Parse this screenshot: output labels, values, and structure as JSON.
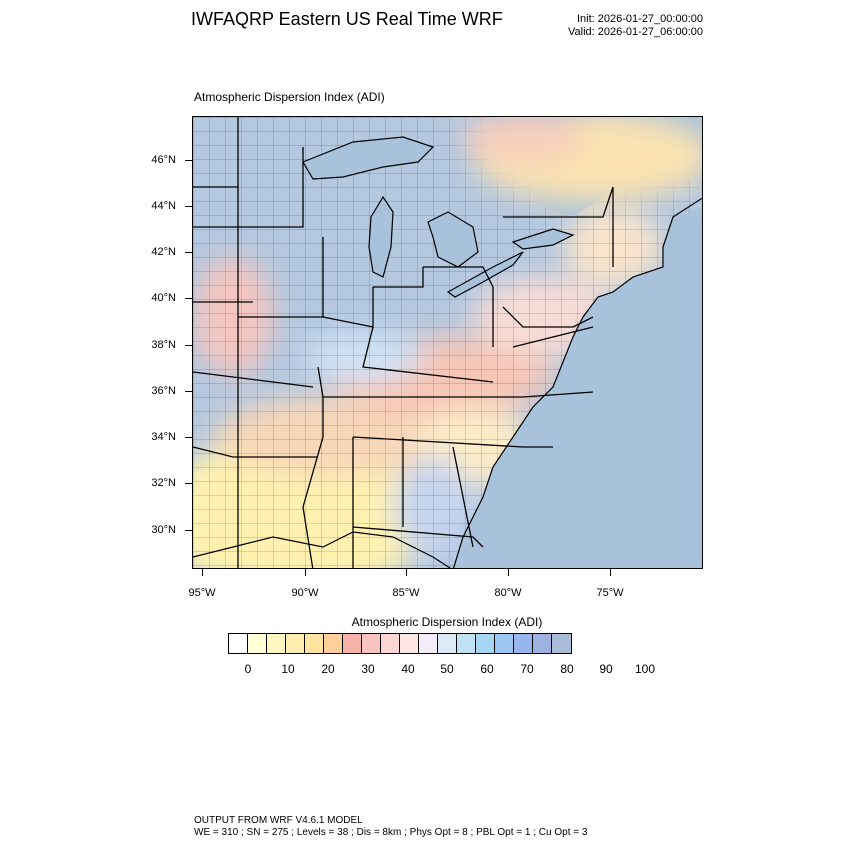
{
  "header": {
    "title": "IWFAQRP Eastern US Real Time WRF",
    "init": "Init: 2026-01-27_00:00:00",
    "valid": "Valid: 2026-01-27_06:00:00"
  },
  "map": {
    "subtitle": "Atmospheric Dispersion Index   (ADI)",
    "lat_labels": [
      "46°N",
      "44°N",
      "42°N",
      "40°N",
      "38°N",
      "36°N",
      "34°N",
      "32°N",
      "30°N"
    ],
    "lon_labels": [
      "95°W",
      "90°W",
      "85°W",
      "80°W",
      "75°W"
    ]
  },
  "colorbar": {
    "title": "Atmospheric Dispersion Index  (ADI)",
    "labels": [
      "0",
      "10",
      "20",
      "30",
      "40",
      "50",
      "60",
      "70",
      "80",
      "90",
      "100"
    ],
    "colors": [
      "#ffffff",
      "#ffffd8",
      "#fff6c2",
      "#ffeeb0",
      "#ffe4a0",
      "#ffd09a",
      "#f7b3a8",
      "#f9c4c0",
      "#fbd6d4",
      "#fde6e4",
      "#f3eefa",
      "#ddeaf8",
      "#bfe2f4",
      "#a6d6f4",
      "#9cc6f2",
      "#98b6ee",
      "#9eb2e2",
      "#a8bcd8"
    ]
  },
  "footer": {
    "line1": "OUTPUT FROM WRF V4.6.1 MODEL",
    "line2": "WE = 310 ; SN = 275 ; Levels = 38 ; Dis = 8km ; Phys Opt = 8 ; PBL Opt = 1 ; Cu Opt = 3"
  }
}
